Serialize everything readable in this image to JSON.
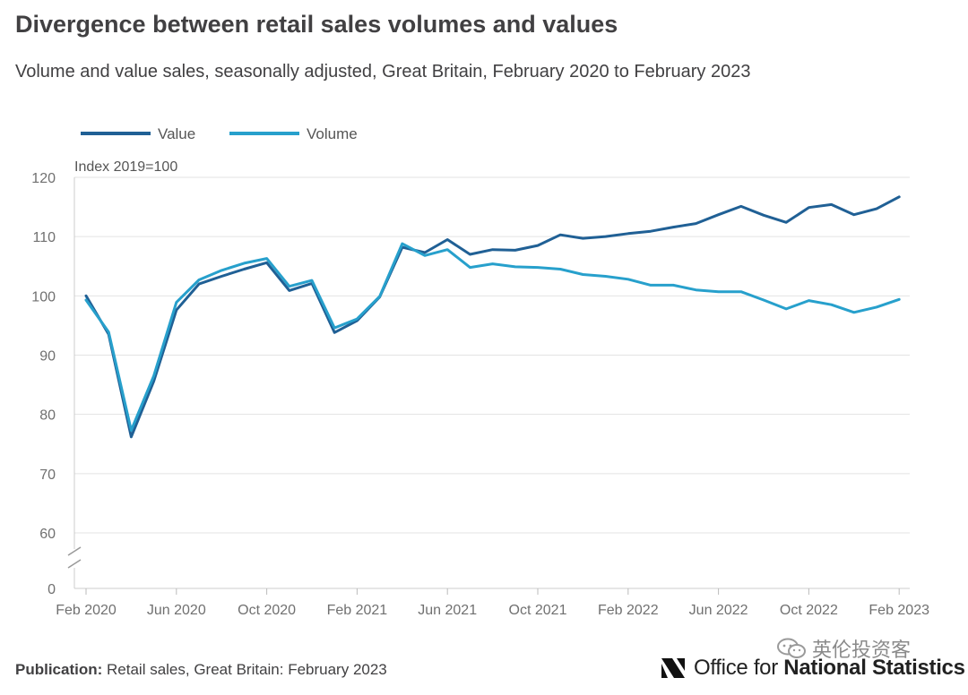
{
  "header": {
    "title": "Divergence between retail sales volumes and values",
    "subtitle": "Volume and value sales, seasonally adjusted, Great Britain, February 2020 to February 2023"
  },
  "chart_data": {
    "type": "line",
    "title": "Divergence between retail sales volumes and values",
    "subtitle": "Volume and value sales, seasonally adjusted, Great Britain, February 2020 to February 2023",
    "ylabel": "Index 2019=100",
    "xlabel": "",
    "ylim": [
      0,
      120
    ],
    "yticks": [
      0,
      60,
      70,
      80,
      90,
      100,
      110,
      120
    ],
    "y_axis_break": "between 0 and 60",
    "grid": true,
    "legend_position": "top-left",
    "x": [
      "Feb 2020",
      "Mar 2020",
      "Apr 2020",
      "May 2020",
      "Jun 2020",
      "Jul 2020",
      "Aug 2020",
      "Sep 2020",
      "Oct 2020",
      "Nov 2020",
      "Dec 2020",
      "Jan 2021",
      "Feb 2021",
      "Mar 2021",
      "Apr 2021",
      "May 2021",
      "Jun 2021",
      "Jul 2021",
      "Aug 2021",
      "Sep 2021",
      "Oct 2021",
      "Nov 2021",
      "Dec 2021",
      "Jan 2022",
      "Feb 2022",
      "Mar 2022",
      "Apr 2022",
      "May 2022",
      "Jun 2022",
      "Jul 2022",
      "Aug 2022",
      "Sep 2022",
      "Oct 2022",
      "Nov 2022",
      "Dec 2022",
      "Jan 2023",
      "Feb 2023"
    ],
    "x_tick_labels": [
      "Feb 2020",
      "Jun 2020",
      "Oct 2020",
      "Feb 2021",
      "Jun 2021",
      "Oct 2021",
      "Feb 2022",
      "Jun 2022",
      "Oct 2022",
      "Feb 2023"
    ],
    "series": [
      {
        "name": "Value",
        "color": "#206095",
        "values": [
          100.0,
          93.5,
          76.2,
          85.6,
          97.6,
          102.0,
          103.3,
          104.5,
          105.6,
          100.9,
          102.1,
          93.8,
          95.8,
          99.8,
          108.2,
          107.3,
          109.5,
          107.0,
          107.8,
          107.7,
          108.5,
          110.3,
          109.7,
          110.0,
          110.5,
          110.9,
          111.6,
          112.2,
          113.7,
          115.1,
          113.6,
          112.4,
          114.9,
          115.4,
          113.7,
          114.7,
          116.7
        ]
      },
      {
        "name": "Volume",
        "color": "#27A0CC",
        "values": [
          99.3,
          93.9,
          77.3,
          86.5,
          98.9,
          102.7,
          104.3,
          105.5,
          106.3,
          101.6,
          102.6,
          94.6,
          96.1,
          99.9,
          108.8,
          106.8,
          107.8,
          104.8,
          105.4,
          104.9,
          104.8,
          104.5,
          103.6,
          103.3,
          102.8,
          101.8,
          101.8,
          101.0,
          100.7,
          100.7,
          99.3,
          97.8,
          99.2,
          98.5,
          97.2,
          98.1,
          99.4
        ]
      }
    ]
  },
  "footer": {
    "publication_label": "Publication:",
    "publication_text": " Retail sales, Great Britain: February 2023"
  },
  "logo": {
    "text_light": "Office for ",
    "text_bold": "National Statistics",
    "icon": "ons-logo-icon"
  },
  "watermark": {
    "text": "英伦投资客",
    "icon": "wechat-icon"
  }
}
